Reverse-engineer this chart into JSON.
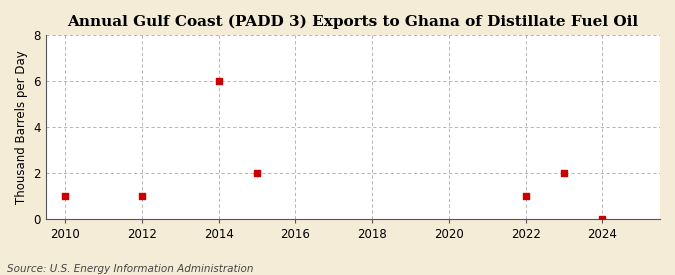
{
  "title": "Annual Gulf Coast (PADD 3) Exports to Ghana of Distillate Fuel Oil",
  "ylabel": "Thousand Barrels per Day",
  "source": "Source: U.S. Energy Information Administration",
  "x_data": [
    2010,
    2012,
    2014,
    2015,
    2022,
    2023,
    2024
  ],
  "y_data": [
    1,
    1,
    6,
    2,
    1,
    2,
    0
  ],
  "marker_color": "#cc0000",
  "marker_size": 5,
  "fig_background_color": "#f5ecd7",
  "plot_background_color": "#ffffff",
  "xlim": [
    2009.5,
    2025.5
  ],
  "ylim": [
    0,
    8
  ],
  "xticks": [
    2010,
    2012,
    2014,
    2016,
    2018,
    2020,
    2022,
    2024
  ],
  "yticks": [
    0,
    2,
    4,
    6,
    8
  ],
  "title_fontsize": 11,
  "label_fontsize": 8.5,
  "tick_fontsize": 8.5,
  "source_fontsize": 7.5
}
